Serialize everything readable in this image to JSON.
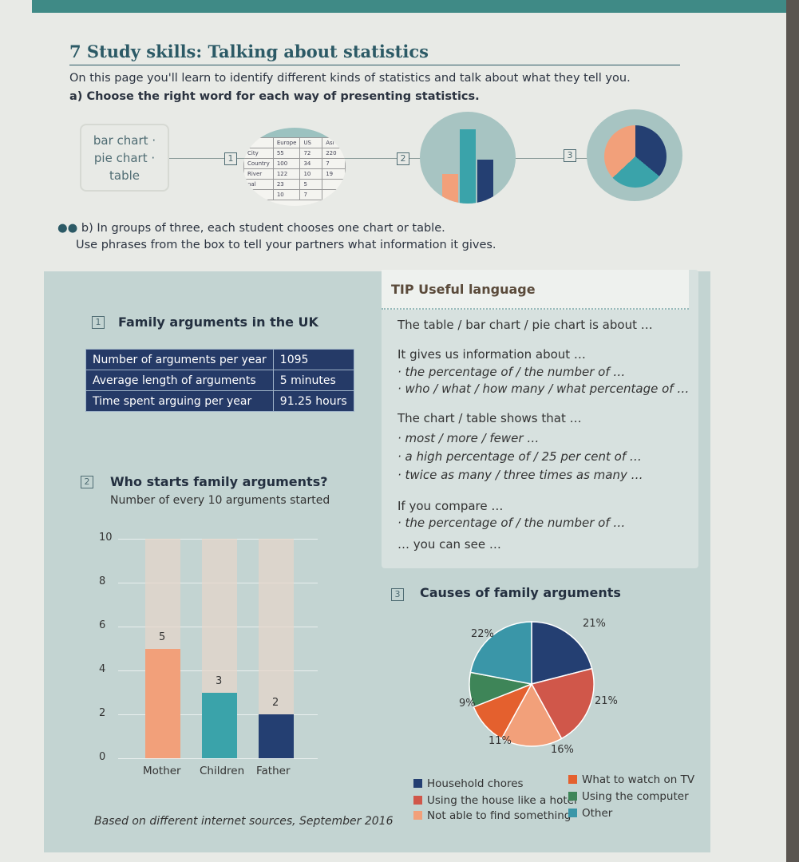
{
  "title": "7 Study skills: Talking about statistics",
  "intro": "On this page you'll learn to identify different kinds of statistics and talk about what they tell you.",
  "task_a": "a) Choose the right word for each way of presenting statistics.",
  "options": [
    "bar chart ·",
    "pie chart ·",
    "table"
  ],
  "markers": [
    "1",
    "2",
    "3"
  ],
  "mini_table": {
    "headers": [
      "",
      "Europe",
      "US",
      "Asi"
    ],
    "rows": [
      [
        "City",
        "55",
        "72",
        "220"
      ],
      [
        "Country",
        "100",
        "34",
        "7"
      ],
      [
        "River",
        "122",
        "10",
        "19"
      ],
      [
        "nal",
        "23",
        "5",
        ""
      ],
      [
        "",
        "10",
        "7",
        ""
      ]
    ]
  },
  "task_b": "b) In groups of three, each student chooses one chart or table.",
  "task_b2": "Use phrases from the box to tell your partners what information it gives.",
  "section1": {
    "num": "1",
    "heading": "Family arguments in the UK",
    "rows": [
      [
        "Number of arguments per year",
        "1095"
      ],
      [
        "Average length of arguments",
        "5 minutes"
      ],
      [
        "Time spent arguing per year",
        "91.25 hours"
      ]
    ]
  },
  "tip": {
    "heading": "TIP  Useful language",
    "lines": [
      {
        "t": "The table / bar chart / pie chart is about …",
        "i": false
      },
      {
        "t": "It gives us information about …",
        "i": false
      },
      {
        "t": "· the percentage of / the number of …",
        "i": true
      },
      {
        "t": "· who / what / how many / what percentage of …",
        "i": true
      },
      {
        "t": "The chart / table shows that …",
        "i": false
      },
      {
        "t": "· most / more / fewer …",
        "i": true
      },
      {
        "t": "· a high percentage of / 25 per cent of …",
        "i": true
      },
      {
        "t": "· twice as many / three times as many …",
        "i": true
      },
      {
        "t": "If you compare …",
        "i": false
      },
      {
        "t": "· the percentage of / the number of …",
        "i": true
      },
      {
        "t": "… you can see …",
        "i": false
      }
    ]
  },
  "section2": {
    "num": "2",
    "heading": "Who starts family arguments?",
    "subtitle": "Number of every 10 arguments started"
  },
  "section3": {
    "num": "3",
    "heading": "Causes of family arguments"
  },
  "source": "Based on different internet sources, September 2016",
  "chart_data": [
    {
      "type": "bar",
      "title": "Who starts family arguments?",
      "ylabel": "Number of every 10 arguments started",
      "categories": [
        "Mother",
        "Children",
        "Father"
      ],
      "values": [
        5,
        3,
        2
      ],
      "ylim": [
        0,
        10
      ],
      "yticks": [
        0,
        2,
        4,
        6,
        8,
        10
      ],
      "colors": [
        "#f2a07a",
        "#3aa3aa",
        "#243f72"
      ],
      "background_bars": true
    },
    {
      "type": "pie",
      "title": "Causes of family arguments",
      "legend": "bottom",
      "slices": [
        {
          "name": "Household chores",
          "value": 21,
          "label": "21%",
          "color": "#243f72"
        },
        {
          "name": "Using the house like a hotel",
          "value": 21,
          "label": "21%",
          "color": "#d0574a"
        },
        {
          "name": "Not able to find something",
          "value": 16,
          "label": "16%",
          "color": "#f2a07a"
        },
        {
          "name": "What to watch on TV",
          "value": 11,
          "label": "11%",
          "color": "#e4602e"
        },
        {
          "name": "Using the computer",
          "value": 9,
          "label": "9%",
          "color": "#3e8558"
        },
        {
          "name": "Other",
          "value": 22,
          "label": "22%",
          "color": "#3a96a8"
        }
      ]
    }
  ]
}
